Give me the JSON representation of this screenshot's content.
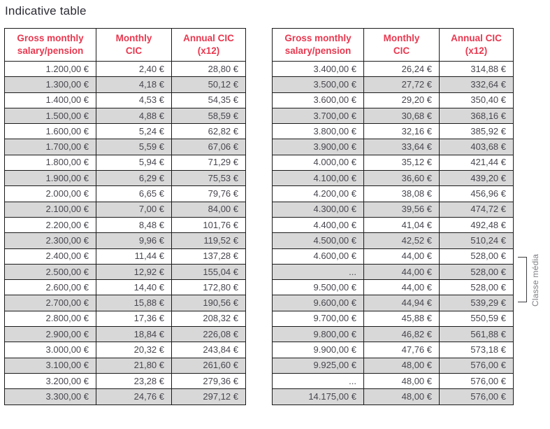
{
  "page": {
    "title": "Indicative table"
  },
  "colors": {
    "header_text": "#e8384f",
    "row_shade": "#d8d8d8",
    "cell_text": "#47474f",
    "border": "#1a1a1a",
    "annotation_text": "#7f7f85"
  },
  "annotation": {
    "label": "Classe média"
  },
  "tables": [
    {
      "name": "left",
      "headers": [
        "Gross monthly\nsalary/pension",
        "Monthly\nCIC",
        "Annual CIC\n(x12)"
      ],
      "rows": [
        [
          "1.200,00 €",
          "2,40 €",
          "28,80 €"
        ],
        [
          "1.300,00 €",
          "4,18 €",
          "50,12 €"
        ],
        [
          "1.400,00 €",
          "4,53 €",
          "54,35 €"
        ],
        [
          "1.500,00 €",
          "4,88 €",
          "58,59 €"
        ],
        [
          "1.600,00 €",
          "5,24 €",
          "62,82 €"
        ],
        [
          "1.700,00 €",
          "5,59 €",
          "67,06 €"
        ],
        [
          "1.800,00 €",
          "5,94 €",
          "71,29 €"
        ],
        [
          "1.900,00 €",
          "6,29 €",
          "75,53 €"
        ],
        [
          "2.000,00 €",
          "6,65 €",
          "79,76 €"
        ],
        [
          "2.100,00 €",
          "7,00 €",
          "84,00 €"
        ],
        [
          "2.200,00 €",
          "8,48 €",
          "101,76 €"
        ],
        [
          "2.300,00 €",
          "9,96 €",
          "119,52 €"
        ],
        [
          "2.400,00 €",
          "11,44 €",
          "137,28 €"
        ],
        [
          "2.500,00 €",
          "12,92 €",
          "155,04 €"
        ],
        [
          "2.600,00 €",
          "14,40 €",
          "172,80 €"
        ],
        [
          "2.700,00 €",
          "15,88 €",
          "190,56 €"
        ],
        [
          "2.800,00 €",
          "17,36 €",
          "208,32 €"
        ],
        [
          "2.900,00 €",
          "18,84 €",
          "226,08 €"
        ],
        [
          "3.000,00 €",
          "20,32 €",
          "243,84 €"
        ],
        [
          "3.100,00 €",
          "21,80 €",
          "261,60 €"
        ],
        [
          "3.200,00 €",
          "23,28 €",
          "279,36 €"
        ],
        [
          "3.300,00 €",
          "24,76 €",
          "297,12 €"
        ]
      ]
    },
    {
      "name": "right",
      "headers": [
        "Gross monthly\nsalary/pension",
        "Monthly\nCIC",
        "Annual CIC\n(x12)"
      ],
      "rows": [
        [
          "3.400,00 €",
          "26,24 €",
          "314,88 €"
        ],
        [
          "3.500,00 €",
          "27,72 €",
          "332,64 €"
        ],
        [
          "3.600,00 €",
          "29,20 €",
          "350,40 €"
        ],
        [
          "3.700,00 €",
          "30,68 €",
          "368,16 €"
        ],
        [
          "3.800,00 €",
          "32,16 €",
          "385,92 €"
        ],
        [
          "3.900,00 €",
          "33,64 €",
          "403,68 €"
        ],
        [
          "4.000,00 €",
          "35,12 €",
          "421,44 €"
        ],
        [
          "4.100,00 €",
          "36,60 €",
          "439,20 €"
        ],
        [
          "4.200,00 €",
          "38,08 €",
          "456,96 €"
        ],
        [
          "4.300,00 €",
          "39,56 €",
          "474,72 €"
        ],
        [
          "4.400,00 €",
          "41,04 €",
          "492,48 €"
        ],
        [
          "4.500,00 €",
          "42,52 €",
          "510,24 €"
        ],
        [
          "4.600,00 €",
          "44,00 €",
          "528,00 €"
        ],
        [
          "...",
          "44,00 €",
          "528,00 €"
        ],
        [
          "9.500,00 €",
          "44,00 €",
          "528,00 €"
        ],
        [
          "9.600,00 €",
          "44,94 €",
          "539,29 €"
        ],
        [
          "9.700,00 €",
          "45,88 €",
          "550,59 €"
        ],
        [
          "9.800,00 €",
          "46,82 €",
          "561,88 €"
        ],
        [
          "9.900,00 €",
          "47,76 €",
          "573,18 €"
        ],
        [
          "9.925,00 €",
          "48,00 €",
          "576,00 €"
        ],
        [
          "...",
          "48,00 €",
          "576,00 €"
        ],
        [
          "14.175,00 €",
          "48,00 €",
          "576,00 €"
        ]
      ]
    }
  ]
}
